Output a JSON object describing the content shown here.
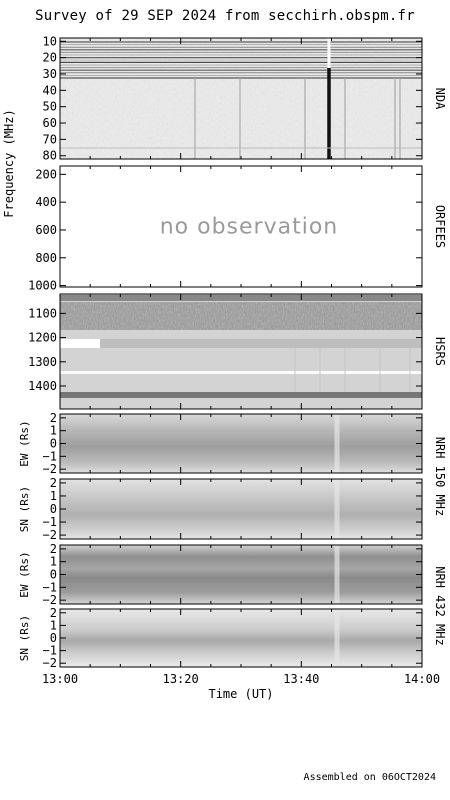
{
  "title": "Survey of 29 SEP 2024 from secchirh.obspm.fr",
  "footer": "Assembled on 06OCT2024",
  "frequency_axis_label": "Frequency (MHz)",
  "time_axis_label": "Time (UT)",
  "time_ticks": [
    "13:00",
    "13:20",
    "13:40",
    "14:00"
  ],
  "panels": [
    {
      "instrument": "NDA",
      "ticks": [
        "10",
        "20",
        "30",
        "40",
        "50",
        "60",
        "70",
        "80"
      ]
    },
    {
      "instrument": "ORFEES",
      "ticks": [
        "200",
        "400",
        "600",
        "800",
        "1000"
      ],
      "overlay": "no observation"
    },
    {
      "instrument": "HSRS",
      "ticks": [
        "1100",
        "1200",
        "1300",
        "1400"
      ]
    },
    {
      "ylabel": "EW (Rs)",
      "ticks": [
        "2",
        "1",
        "0",
        "−1",
        "−2"
      ]
    },
    {
      "ylabel": "SN (Rs)",
      "ticks": [
        "2",
        "1",
        "0",
        "−1",
        "−2"
      ]
    },
    {
      "ylabel": "EW (Rs)",
      "ticks": [
        "2",
        "1",
        "0",
        "−1",
        "−2"
      ]
    },
    {
      "ylabel": "SN (Rs)",
      "ticks": [
        "2",
        "1",
        "0",
        "−1",
        "−2"
      ]
    }
  ],
  "nrh_labels": [
    "NRH 150 MHz",
    "NRH 432 MHz"
  ],
  "chart_data": {
    "type": "heatmap",
    "title": "Survey of 29 SEP 2024 from secchirh.obspm.fr",
    "xlabel": "Time (UT)",
    "ylabel": "Frequency (MHz)",
    "xlim": [
      "13:00",
      "14:00"
    ],
    "panels": [
      {
        "instrument": "NDA",
        "ylim": [
          8,
          82
        ],
        "yticks": [
          10,
          20,
          30,
          40,
          50,
          60,
          70,
          80
        ]
      },
      {
        "instrument": "ORFEES",
        "ylim": [
          140,
          1010
        ],
        "yticks": [
          200,
          400,
          600,
          800,
          1000
        ],
        "observed": false
      },
      {
        "instrument": "HSRS",
        "ylim": [
          1020,
          1495
        ],
        "yticks": [
          1100,
          1200,
          1300,
          1400
        ]
      },
      {
        "instrument": "NRH 150 MHz",
        "component": "EW (Rs)",
        "ylim": [
          -2.3,
          2.3
        ],
        "yticks": [
          2,
          1,
          0,
          -1,
          -2
        ]
      },
      {
        "instrument": "NRH 150 MHz",
        "component": "SN (Rs)",
        "ylim": [
          -2.3,
          2.3
        ],
        "yticks": [
          2,
          1,
          0,
          -1,
          -2
        ]
      },
      {
        "instrument": "NRH 432 MHz",
        "component": "EW (Rs)",
        "ylim": [
          -2.3,
          2.3
        ],
        "yticks": [
          2,
          1,
          0,
          -1,
          -2
        ]
      },
      {
        "instrument": "NRH 432 MHz",
        "component": "SN (Rs)",
        "ylim": [
          -2.3,
          2.3
        ],
        "yticks": [
          2,
          1,
          0,
          -1,
          -2
        ]
      }
    ],
    "grid": false
  }
}
